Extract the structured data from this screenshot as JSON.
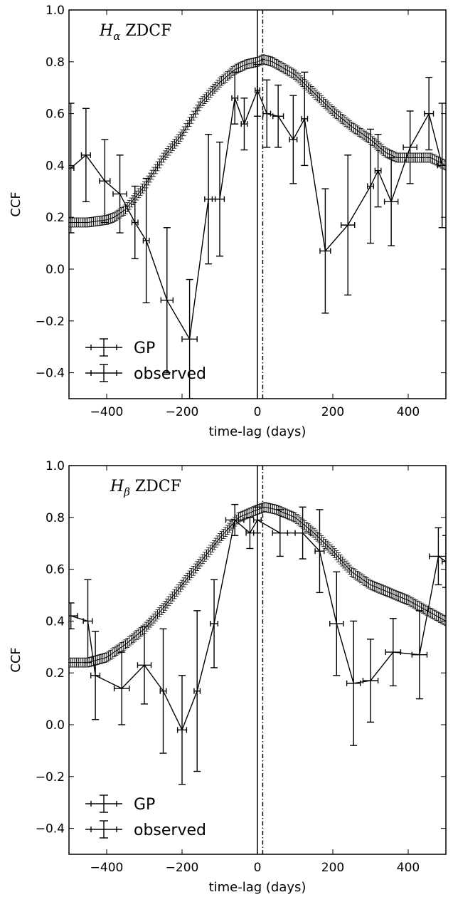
{
  "chart_data": [
    {
      "type": "line",
      "title_main": "H",
      "title_sub": "α",
      "title_rest": " ZDCF",
      "xlabel": "time-lag (days)",
      "ylabel": "CCF",
      "xlim": [
        -500,
        500
      ],
      "ylim": [
        -0.5,
        1.0
      ],
      "xticks": [
        -400,
        -200,
        0,
        200,
        400
      ],
      "xtick_labels": [
        "−400",
        "−200",
        "0",
        "200",
        "400"
      ],
      "yticks": [
        -0.4,
        -0.2,
        0.0,
        0.2,
        0.4,
        0.6,
        0.8,
        1.0
      ],
      "ytick_labels": [
        "−0.4",
        "−0.2",
        "0.0",
        "0.2",
        "0.4",
        "0.6",
        "0.8",
        "1.0"
      ],
      "vlines": [
        {
          "x": 0,
          "style": "solid"
        },
        {
          "x": 14,
          "style": "dashdot"
        }
      ],
      "legend": {
        "placement": "lower-left",
        "entries": [
          "GP",
          "observed"
        ]
      },
      "gp_curve": {
        "name": "GP",
        "x": [
          -500,
          -450,
          -400,
          -380,
          -350,
          -300,
          -250,
          -200,
          -150,
          -100,
          -60,
          -30,
          0,
          15,
          40,
          100,
          150,
          200,
          250,
          300,
          340,
          370,
          400,
          430,
          460,
          500
        ],
        "y": [
          0.18,
          0.18,
          0.19,
          0.2,
          0.23,
          0.32,
          0.43,
          0.52,
          0.64,
          0.72,
          0.77,
          0.79,
          0.8,
          0.81,
          0.8,
          0.75,
          0.68,
          0.61,
          0.55,
          0.5,
          0.45,
          0.43,
          0.43,
          0.43,
          0.43,
          0.4
        ],
        "err": 0.012
      },
      "observed": {
        "name": "observed",
        "points": [
          {
            "x": -495,
            "y": 0.39,
            "yerr": 0.25,
            "xerr": 8
          },
          {
            "x": -455,
            "y": 0.44,
            "yerr": 0.18,
            "xerr": 12
          },
          {
            "x": -405,
            "y": 0.34,
            "yerr": 0.16,
            "xerr": 14
          },
          {
            "x": -365,
            "y": 0.29,
            "yerr": 0.15,
            "xerr": 18
          },
          {
            "x": -325,
            "y": 0.18,
            "yerr": 0.14,
            "xerr": 8
          },
          {
            "x": -295,
            "y": 0.11,
            "yerr": 0.24,
            "xerr": 8
          },
          {
            "x": -240,
            "y": -0.12,
            "yerr": 0.28,
            "xerr": 16
          },
          {
            "x": -180,
            "y": -0.27,
            "yerr": 0.23,
            "xerr": 20
          },
          {
            "x": -130,
            "y": 0.27,
            "yerr": 0.25,
            "xerr": 10
          },
          {
            "x": -100,
            "y": 0.27,
            "yerr": 0.22,
            "xerr": 12
          },
          {
            "x": -60,
            "y": 0.66,
            "yerr": 0.1,
            "xerr": 8
          },
          {
            "x": -35,
            "y": 0.56,
            "yerr": 0.1,
            "xerr": 8
          },
          {
            "x": 0,
            "y": 0.69,
            "yerr": 0.1,
            "xerr": 6
          },
          {
            "x": 25,
            "y": 0.6,
            "yerr": 0.13,
            "xerr": 10
          },
          {
            "x": 55,
            "y": 0.59,
            "yerr": 0.12,
            "xerr": 14
          },
          {
            "x": 95,
            "y": 0.5,
            "yerr": 0.17,
            "xerr": 10
          },
          {
            "x": 125,
            "y": 0.58,
            "yerr": 0.18,
            "xerr": 8
          },
          {
            "x": 180,
            "y": 0.07,
            "yerr": 0.24,
            "xerr": 14
          },
          {
            "x": 240,
            "y": 0.17,
            "yerr": 0.27,
            "xerr": 18
          },
          {
            "x": 300,
            "y": 0.32,
            "yerr": 0.22,
            "xerr": 8
          },
          {
            "x": 320,
            "y": 0.38,
            "yerr": 0.14,
            "xerr": 8
          },
          {
            "x": 355,
            "y": 0.26,
            "yerr": 0.17,
            "xerr": 18
          },
          {
            "x": 405,
            "y": 0.47,
            "yerr": 0.14,
            "xerr": 18
          },
          {
            "x": 455,
            "y": 0.6,
            "yerr": 0.14,
            "xerr": 12
          },
          {
            "x": 490,
            "y": 0.4,
            "yerr": 0.24,
            "xerr": 12
          }
        ]
      }
    },
    {
      "type": "line",
      "title_main": "H",
      "title_sub": "β",
      "title_rest": " ZDCF",
      "xlabel": "time-lag (days)",
      "ylabel": "CCF",
      "xlim": [
        -500,
        500
      ],
      "ylim": [
        -0.5,
        1.0
      ],
      "xticks": [
        -400,
        -200,
        0,
        200,
        400
      ],
      "xtick_labels": [
        "−400",
        "−200",
        "0",
        "200",
        "400"
      ],
      "yticks": [
        -0.4,
        -0.2,
        0.0,
        0.2,
        0.4,
        0.6,
        0.8,
        1.0
      ],
      "ytick_labels": [
        "−0.4",
        "−0.2",
        "0.0",
        "0.2",
        "0.4",
        "0.6",
        "0.8",
        "1.0"
      ],
      "vlines": [
        {
          "x": 0,
          "style": "solid"
        },
        {
          "x": 14,
          "style": "dashdot"
        }
      ],
      "legend": {
        "placement": "lower-left",
        "entries": [
          "GP",
          "observed"
        ]
      },
      "gp_curve": {
        "name": "GP",
        "x": [
          -500,
          -450,
          -400,
          -350,
          -300,
          -250,
          -200,
          -150,
          -100,
          -50,
          0,
          20,
          50,
          100,
          150,
          200,
          250,
          300,
          350,
          400,
          450,
          500
        ],
        "y": [
          0.24,
          0.24,
          0.26,
          0.31,
          0.37,
          0.45,
          0.54,
          0.63,
          0.72,
          0.8,
          0.83,
          0.84,
          0.83,
          0.8,
          0.74,
          0.67,
          0.59,
          0.54,
          0.51,
          0.48,
          0.44,
          0.4
        ],
        "err": 0.012
      },
      "observed": {
        "name": "observed",
        "points": [
          {
            "x": -495,
            "y": 0.42,
            "yerr": 0.05,
            "xerr": 18
          },
          {
            "x": -450,
            "y": 0.4,
            "yerr": 0.16,
            "xerr": 12
          },
          {
            "x": -430,
            "y": 0.19,
            "yerr": 0.17,
            "xerr": 12
          },
          {
            "x": -360,
            "y": 0.14,
            "yerr": 0.14,
            "xerr": 20
          },
          {
            "x": -300,
            "y": 0.23,
            "yerr": 0.15,
            "xerr": 18
          },
          {
            "x": -250,
            "y": 0.13,
            "yerr": 0.24,
            "xerr": 8
          },
          {
            "x": -200,
            "y": -0.02,
            "yerr": 0.21,
            "xerr": 12
          },
          {
            "x": -160,
            "y": 0.13,
            "yerr": 0.31,
            "xerr": 8
          },
          {
            "x": -115,
            "y": 0.39,
            "yerr": 0.17,
            "xerr": 10
          },
          {
            "x": -60,
            "y": 0.79,
            "yerr": 0.06,
            "xerr": 24
          },
          {
            "x": -20,
            "y": 0.74,
            "yerr": 0.06,
            "xerr": 10
          },
          {
            "x": 0,
            "y": 0.79,
            "yerr": 0.05,
            "xerr": 10
          },
          {
            "x": 60,
            "y": 0.74,
            "yerr": 0.09,
            "xerr": 20
          },
          {
            "x": 120,
            "y": 0.74,
            "yerr": 0.1,
            "xerr": 20
          },
          {
            "x": 165,
            "y": 0.67,
            "yerr": 0.16,
            "xerr": 12
          },
          {
            "x": 210,
            "y": 0.39,
            "yerr": 0.2,
            "xerr": 18
          },
          {
            "x": 255,
            "y": 0.16,
            "yerr": 0.24,
            "xerr": 18
          },
          {
            "x": 300,
            "y": 0.17,
            "yerr": 0.16,
            "xerr": 20
          },
          {
            "x": 360,
            "y": 0.28,
            "yerr": 0.13,
            "xerr": 20
          },
          {
            "x": 430,
            "y": 0.27,
            "yerr": 0.17,
            "xerr": 20
          },
          {
            "x": 480,
            "y": 0.65,
            "yerr": 0.11,
            "xerr": 24
          },
          {
            "x": 500,
            "y": 0.63,
            "yerr": 0.1,
            "xerr": 10
          }
        ]
      }
    }
  ]
}
